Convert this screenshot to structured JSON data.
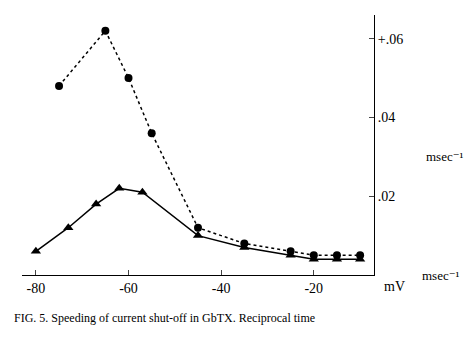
{
  "chart_data": {
    "type": "line",
    "series": [
      {
        "x": [
          -75,
          -65,
          -60,
          -55,
          -45,
          -35,
          -25,
          -20,
          -15,
          -10
        ],
        "values": [
          0.048,
          0.062,
          0.05,
          0.036,
          0.012,
          0.008,
          0.006,
          0.005,
          0.005,
          0.005
        ],
        "color": "#000000",
        "marker": "circle",
        "line_style": "dotted"
      },
      {
        "x": [
          -80,
          -73,
          -67,
          -62,
          -57,
          -45,
          -35,
          -25,
          -20,
          -15,
          -10
        ],
        "values": [
          0.006,
          0.012,
          0.018,
          0.022,
          0.021,
          0.01,
          0.007,
          0.005,
          0.004,
          0.004,
          0.004
        ],
        "color": "#000000",
        "marker": "triangle",
        "line_style": "solid"
      }
    ],
    "xlim": [
      -83,
      -7
    ],
    "ylim": [
      0.0,
      0.066
    ],
    "xticks": [
      -80,
      -60,
      -40,
      -20
    ],
    "yticks": [
      {
        "value": 0.0,
        "label": null
      },
      {
        "value": 0.02,
        "label": ".02"
      },
      {
        "value": 0.04,
        "label": ".04"
      },
      {
        "value": 0.06,
        "label": "+.06"
      }
    ],
    "xlabel": "mV",
    "annotations": [
      {
        "text": "msec⁻¹",
        "y": 0.0
      },
      {
        "text": "msec⁻¹",
        "y": 0.03
      }
    ],
    "caption": "FIG. 5. Speeding of current shut-off in GbTX. Reciprocal time",
    "grid": false
  }
}
